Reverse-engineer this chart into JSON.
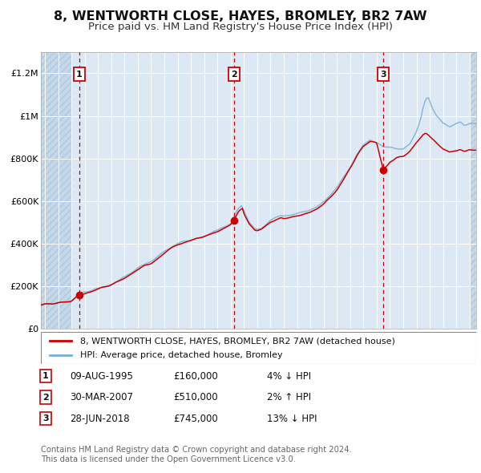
{
  "title": "8, WENTWORTH CLOSE, HAYES, BROMLEY, BR2 7AW",
  "subtitle": "Price paid vs. HM Land Registry's House Price Index (HPI)",
  "title_fontsize": 11.5,
  "subtitle_fontsize": 9.5,
  "ylim": [
    0,
    1300000
  ],
  "xlim_start": 1992.7,
  "xlim_end": 2025.5,
  "yticks": [
    0,
    200000,
    400000,
    600000,
    800000,
    1000000,
    1200000
  ],
  "ytick_labels": [
    "£0",
    "£200K",
    "£400K",
    "£600K",
    "£800K",
    "£1M",
    "£1.2M"
  ],
  "xticks": [
    1993,
    1994,
    1995,
    1996,
    1997,
    1998,
    1999,
    2000,
    2001,
    2002,
    2003,
    2004,
    2005,
    2006,
    2007,
    2008,
    2009,
    2010,
    2011,
    2012,
    2013,
    2014,
    2015,
    2016,
    2017,
    2018,
    2019,
    2020,
    2021,
    2022,
    2023,
    2024,
    2025
  ],
  "background_color": "#dce9f5",
  "red_line_color": "#cc0000",
  "blue_line_color": "#7bafd4",
  "sale_color": "#cc0000",
  "dashed_line_color": "#cc0000",
  "purchases": [
    {
      "num": 1,
      "date": "09-AUG-1995",
      "year": 1995.6,
      "price": 160000,
      "pct": "4%",
      "dir": "↓"
    },
    {
      "num": 2,
      "date": "30-MAR-2007",
      "year": 2007.25,
      "price": 510000,
      "pct": "2%",
      "dir": "↑"
    },
    {
      "num": 3,
      "date": "28-JUN-2018",
      "year": 2018.5,
      "price": 745000,
      "pct": "13%",
      "dir": "↓"
    }
  ],
  "legend_entries": [
    "8, WENTWORTH CLOSE, HAYES, BROMLEY, BR2 7AW (detached house)",
    "HPI: Average price, detached house, Bromley"
  ],
  "footer_lines": [
    "Contains HM Land Registry data © Crown copyright and database right 2024.",
    "This data is licensed under the Open Government Licence v3.0."
  ]
}
